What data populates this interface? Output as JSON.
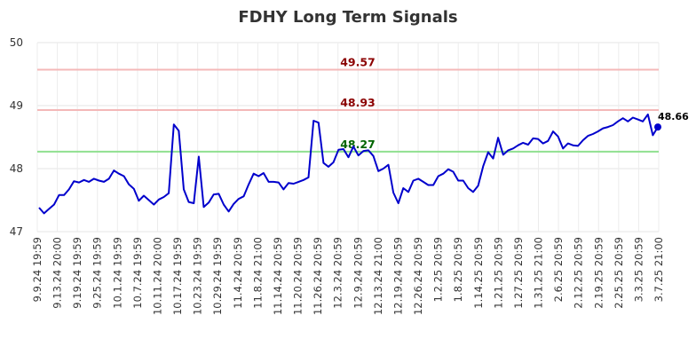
{
  "chart_data": {
    "type": "line",
    "title": "FDHY Long Term Signals",
    "xlabel": "",
    "ylabel": "",
    "ylim": [
      47,
      50
    ],
    "yticks": [
      "47",
      "48",
      "49",
      "50"
    ],
    "grid": true,
    "x_tick_labels": [
      "9.9.24 19:59",
      "9.13.24 20:00",
      "9.19.24 19:59",
      "9.25.24 19:59",
      "10.1.24 19:59",
      "10.7.24 19:59",
      "10.11.24 20:00",
      "10.17.24 19:59",
      "10.23.24 19:59",
      "10.29.24 19:59",
      "11.4.24 20:59",
      "11.8.24 21:00",
      "11.14.24 20:59",
      "11.20.24 20:59",
      "11.26.24 20:59",
      "12.3.24 20:59",
      "12.9.24 20:59",
      "12.13.24 21:00",
      "12.19.24 20:59",
      "12.26.24 20:59",
      "1.2.25 20:59",
      "1.8.25 20:59",
      "1.14.25 20:59",
      "1.21.25 20:59",
      "1.27.25 20:59",
      "1.31.25 21:00",
      "2.6.25 20:59",
      "2.12.25 20:59",
      "2.19.25 20:59",
      "2.25.25 20:59",
      "3.3.25 20:59",
      "3.7.25 21:00"
    ],
    "series": [
      {
        "color": "#0000cc",
        "values": [
          47.38,
          47.29,
          47.36,
          47.43,
          47.58,
          47.58,
          47.67,
          47.8,
          47.78,
          47.82,
          47.79,
          47.84,
          47.81,
          47.79,
          47.84,
          47.97,
          47.92,
          47.88,
          47.75,
          47.68,
          47.49,
          47.57,
          47.5,
          47.43,
          47.51,
          47.55,
          47.61,
          48.7,
          48.6,
          47.67,
          47.47,
          47.45,
          48.19,
          47.39,
          47.46,
          47.59,
          47.6,
          47.43,
          47.32,
          47.44,
          47.52,
          47.56,
          47.75,
          47.92,
          47.88,
          47.93,
          47.79,
          47.79,
          47.78,
          47.67,
          47.77,
          47.76,
          47.79,
          47.82,
          47.86,
          48.76,
          48.73,
          48.09,
          48.03,
          48.1,
          48.3,
          48.31,
          48.18,
          48.35,
          48.21,
          48.28,
          48.29,
          48.2,
          47.96,
          48.0,
          48.06,
          47.62,
          47.45,
          47.69,
          47.63,
          47.81,
          47.84,
          47.79,
          47.74,
          47.74,
          47.88,
          47.92,
          47.99,
          47.95,
          47.81,
          47.81,
          47.69,
          47.63,
          47.73,
          48.04,
          48.26,
          48.16,
          48.49,
          48.22,
          48.29,
          48.32,
          48.37,
          48.41,
          48.38,
          48.48,
          48.47,
          48.4,
          48.44,
          48.59,
          48.51,
          48.32,
          48.4,
          48.37,
          48.36,
          48.45,
          48.52,
          48.55,
          48.59,
          48.64,
          48.66,
          48.69,
          48.75,
          48.8,
          48.75,
          48.81,
          48.78,
          48.75,
          48.86,
          48.53,
          48.66
        ]
      }
    ],
    "hlines": [
      {
        "value": 49.57,
        "label": "49.57",
        "line_color": "#f4b8b8",
        "text_color": "#8b0000"
      },
      {
        "value": 48.93,
        "label": "48.93",
        "line_color": "#f4b8b8",
        "text_color": "#8b0000"
      },
      {
        "value": 48.27,
        "label": "48.27",
        "line_color": "#90e090",
        "text_color": "#006400"
      }
    ],
    "last_value_label": "48.66"
  }
}
